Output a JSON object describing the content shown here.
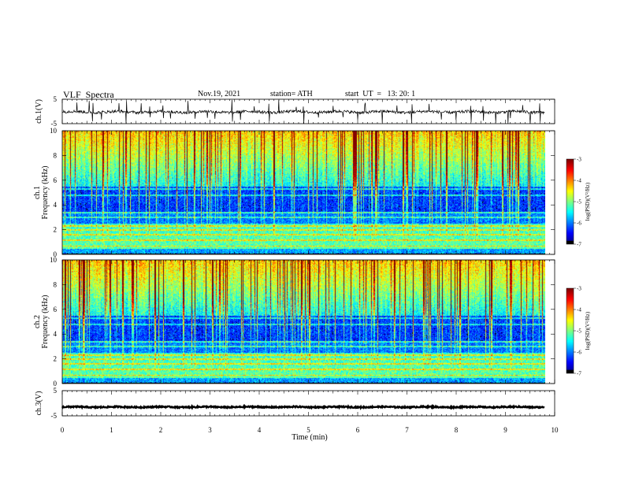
{
  "header": {
    "title": "VLF  Spectra",
    "date": "Nov.19, 2021",
    "station": "station= ATH",
    "start_ut": "start  UT  =   13: 20: 1"
  },
  "chart_data": [
    {
      "type": "line",
      "panel": "ch1",
      "ylabel": "ch.1(V)",
      "yticks": [
        "5",
        "-5"
      ],
      "ylim": [
        -5,
        5
      ],
      "xlim": [
        0,
        10
      ],
      "data_extent_min": 9.8,
      "baseline": -0.2,
      "noise_amplitude": 0.6,
      "spikes": [
        0.3,
        0.55,
        0.62,
        0.8,
        1.15,
        1.3,
        1.6,
        1.78,
        2.05,
        2.2,
        2.55,
        2.7,
        2.95,
        3.1,
        3.45,
        3.62,
        3.9,
        4.2,
        4.4,
        4.75,
        4.9,
        5.2,
        5.5,
        5.7,
        6.0,
        6.15,
        6.5,
        6.8,
        7.1,
        7.45,
        7.7,
        8.0,
        8.3,
        8.55,
        8.8,
        9.05,
        9.1,
        9.35,
        9.5,
        9.7
      ]
    },
    {
      "type": "heatmap",
      "panel": "ch1-spectrogram",
      "ylabel": "Frequency  (kHz)",
      "channel_label": "ch.1",
      "yticks": [
        "0",
        "2",
        "4",
        "6",
        "8",
        "10"
      ],
      "ylim": [
        0,
        10
      ],
      "xlim": [
        0,
        10
      ],
      "data_extent_min": 9.8,
      "colorbar": {
        "label": "log(PSD)(V²/Hz)",
        "ticks": [
          "-3",
          "-4",
          "-5",
          "-6",
          "-7"
        ],
        "range": [
          -7,
          -3
        ]
      },
      "bands_khz": [
        0.7,
        1.2,
        1.6,
        2.0,
        2.3,
        3.0,
        3.4,
        4.8,
        5.3
      ]
    },
    {
      "type": "heatmap",
      "panel": "ch2-spectrogram",
      "ylabel": "Frequency  (kHz)",
      "channel_label": "ch.2",
      "yticks": [
        "0",
        "2",
        "4",
        "6",
        "8",
        "10"
      ],
      "ylim": [
        0,
        10
      ],
      "xlim": [
        0,
        10
      ],
      "data_extent_min": 9.8,
      "colorbar": {
        "label": "log(PSD)(V²/Hz)",
        "ticks": [
          "-3",
          "-4",
          "-5",
          "-6",
          "-7"
        ],
        "range": [
          -7,
          -3
        ]
      },
      "bands_khz": [
        0.7,
        1.2,
        1.6,
        2.0,
        2.3,
        3.0,
        3.4,
        4.8,
        5.3
      ]
    },
    {
      "type": "line",
      "panel": "ch3",
      "ylabel": "ch.3(V)",
      "yticks": [
        "5",
        "-5"
      ],
      "ylim": [
        -5,
        5
      ],
      "xlim": [
        0,
        10
      ],
      "data_extent_min": 9.8,
      "baseline": -1.5,
      "noise_amplitude": 0.25
    }
  ],
  "x_axis": {
    "label": "Time  (min)",
    "ticks": [
      "0",
      "1",
      "2",
      "3",
      "4",
      "5",
      "6",
      "7",
      "8",
      "9",
      "10"
    ]
  },
  "colors": {
    "trace": "#000000",
    "frame": "#000000",
    "background": "#ffffff"
  }
}
